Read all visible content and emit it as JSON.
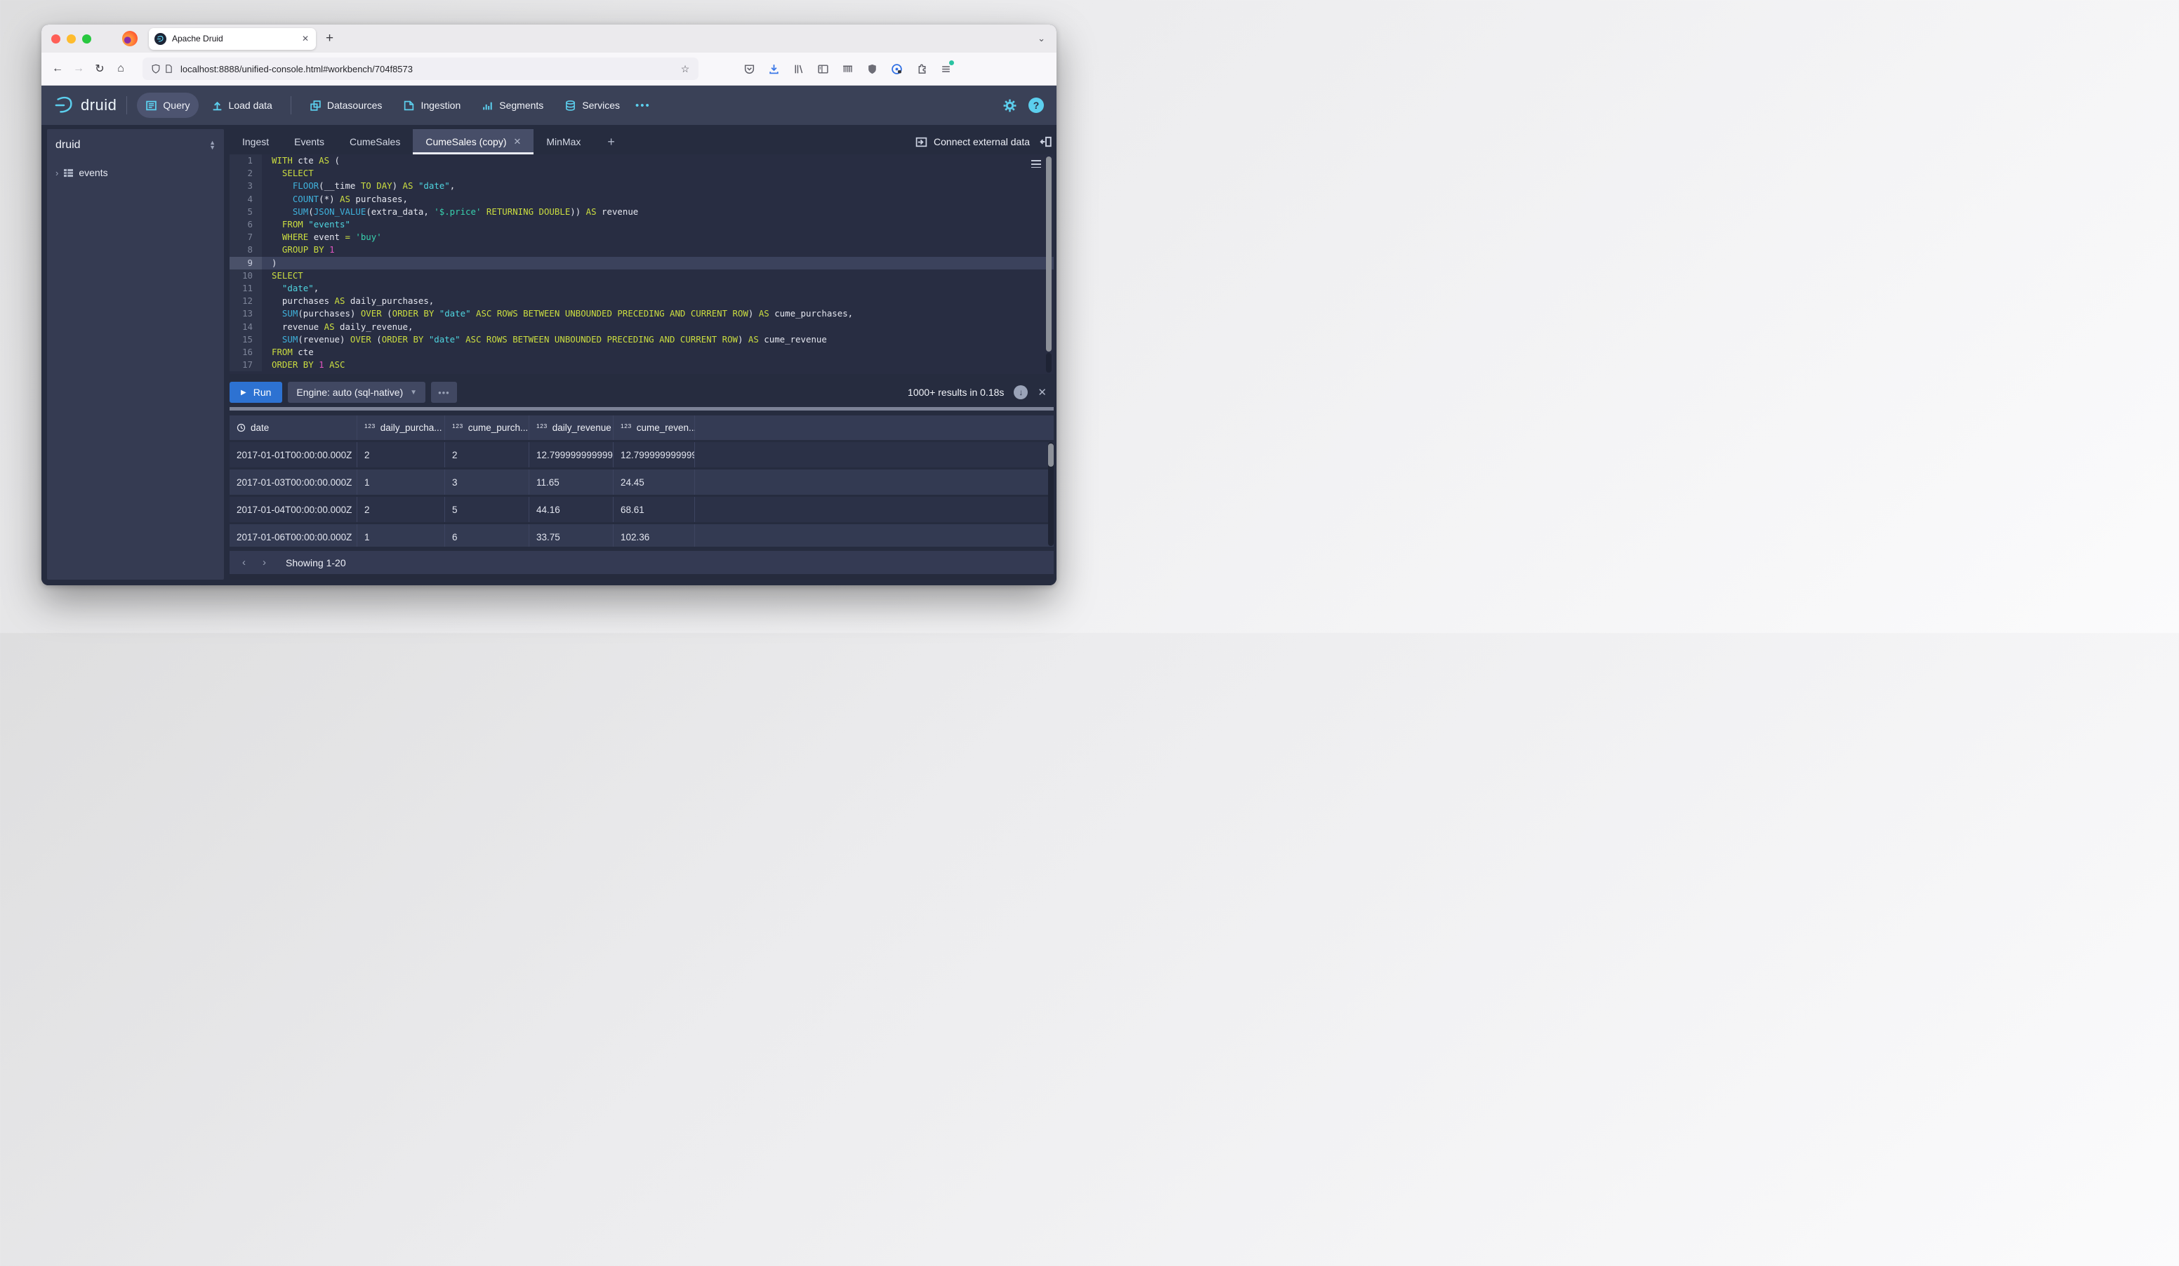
{
  "browser": {
    "tab_title": "Apache Druid",
    "url": "localhost:8888/unified-console.html#workbench/704f8573",
    "toolbar_icons": [
      "pocket",
      "downloads",
      "library",
      "sidebar",
      "containers",
      "ublock",
      "onepassword",
      "extensions",
      "menu"
    ]
  },
  "navbar": {
    "brand": "druid",
    "items": [
      {
        "label": "Query",
        "icon": "query",
        "active": true
      },
      {
        "label": "Load data",
        "icon": "load-data"
      },
      {
        "label": "Datasources",
        "icon": "datasources"
      },
      {
        "label": "Ingestion",
        "icon": "ingestion"
      },
      {
        "label": "Segments",
        "icon": "segments"
      },
      {
        "label": "Services",
        "icon": "services"
      }
    ],
    "more_label": "•••"
  },
  "sidebar": {
    "schema": "druid",
    "tables": [
      {
        "name": "events"
      }
    ]
  },
  "workbench": {
    "tabs": [
      {
        "label": "Ingest"
      },
      {
        "label": "Events"
      },
      {
        "label": "CumeSales"
      },
      {
        "label": "CumeSales (copy)",
        "active": true,
        "closable": true
      },
      {
        "label": "MinMax"
      }
    ],
    "new_tab_label": "+",
    "connect_external": "Connect external data"
  },
  "editor": {
    "lines": [
      {
        "n": 1,
        "tokens": [
          [
            "k",
            "WITH"
          ],
          [
            "p",
            " cte "
          ],
          [
            "k",
            "AS"
          ],
          [
            "p",
            " ("
          ]
        ]
      },
      {
        "n": 2,
        "tokens": [
          [
            "p",
            "  "
          ],
          [
            "k",
            "SELECT"
          ]
        ]
      },
      {
        "n": 3,
        "tokens": [
          [
            "p",
            "    "
          ],
          [
            "f",
            "FLOOR"
          ],
          [
            "p",
            "(__time "
          ],
          [
            "k",
            "TO"
          ],
          [
            "p",
            " "
          ],
          [
            "k",
            "DAY"
          ],
          [
            "p",
            ") "
          ],
          [
            "k",
            "AS"
          ],
          [
            "p",
            " "
          ],
          [
            "q",
            "\"date\""
          ],
          [
            "p",
            ","
          ]
        ]
      },
      {
        "n": 4,
        "tokens": [
          [
            "p",
            "    "
          ],
          [
            "f",
            "COUNT"
          ],
          [
            "p",
            "(*) "
          ],
          [
            "k",
            "AS"
          ],
          [
            "p",
            " purchases,"
          ]
        ]
      },
      {
        "n": 5,
        "tokens": [
          [
            "p",
            "    "
          ],
          [
            "f",
            "SUM"
          ],
          [
            "p",
            "("
          ],
          [
            "f",
            "JSON_VALUE"
          ],
          [
            "p",
            "(extra_data, "
          ],
          [
            "s",
            "'$.price'"
          ],
          [
            "p",
            " "
          ],
          [
            "k",
            "RETURNING"
          ],
          [
            "p",
            " "
          ],
          [
            "k",
            "DOUBLE"
          ],
          [
            "p",
            ")) "
          ],
          [
            "k",
            "AS"
          ],
          [
            "p",
            " revenue"
          ]
        ]
      },
      {
        "n": 6,
        "tokens": [
          [
            "p",
            "  "
          ],
          [
            "k",
            "FROM"
          ],
          [
            "p",
            " "
          ],
          [
            "q",
            "\"events\""
          ]
        ]
      },
      {
        "n": 7,
        "tokens": [
          [
            "p",
            "  "
          ],
          [
            "k",
            "WHERE"
          ],
          [
            "p",
            " event "
          ],
          [
            "k",
            "="
          ],
          [
            "p",
            " "
          ],
          [
            "s",
            "'buy'"
          ]
        ]
      },
      {
        "n": 8,
        "tokens": [
          [
            "p",
            "  "
          ],
          [
            "k",
            "GROUP BY"
          ],
          [
            "p",
            " "
          ],
          [
            "n",
            "1"
          ]
        ]
      },
      {
        "n": 9,
        "active": true,
        "tokens": [
          [
            "p",
            ")"
          ]
        ]
      },
      {
        "n": 10,
        "tokens": [
          [
            "k",
            "SELECT"
          ]
        ]
      },
      {
        "n": 11,
        "tokens": [
          [
            "p",
            "  "
          ],
          [
            "q",
            "\"date\""
          ],
          [
            "p",
            ","
          ]
        ]
      },
      {
        "n": 12,
        "tokens": [
          [
            "p",
            "  purchases "
          ],
          [
            "k",
            "AS"
          ],
          [
            "p",
            " daily_purchases,"
          ]
        ]
      },
      {
        "n": 13,
        "tokens": [
          [
            "p",
            "  "
          ],
          [
            "f",
            "SUM"
          ],
          [
            "p",
            "(purchases) "
          ],
          [
            "k",
            "OVER"
          ],
          [
            "p",
            " ("
          ],
          [
            "k",
            "ORDER BY"
          ],
          [
            "p",
            " "
          ],
          [
            "q",
            "\"date\""
          ],
          [
            "p",
            " "
          ],
          [
            "k",
            "ASC ROWS BETWEEN UNBOUNDED PRECEDING AND CURRENT ROW"
          ],
          [
            "p",
            ") "
          ],
          [
            "k",
            "AS"
          ],
          [
            "p",
            " cume_purchases,"
          ]
        ]
      },
      {
        "n": 14,
        "tokens": [
          [
            "p",
            "  revenue "
          ],
          [
            "k",
            "AS"
          ],
          [
            "p",
            " daily_revenue,"
          ]
        ]
      },
      {
        "n": 15,
        "tokens": [
          [
            "p",
            "  "
          ],
          [
            "f",
            "SUM"
          ],
          [
            "p",
            "(revenue) "
          ],
          [
            "k",
            "OVER"
          ],
          [
            "p",
            " ("
          ],
          [
            "k",
            "ORDER BY"
          ],
          [
            "p",
            " "
          ],
          [
            "q",
            "\"date\""
          ],
          [
            "p",
            " "
          ],
          [
            "k",
            "ASC ROWS BETWEEN UNBOUNDED PRECEDING AND CURRENT ROW"
          ],
          [
            "p",
            ") "
          ],
          [
            "k",
            "AS"
          ],
          [
            "p",
            " cume_revenue"
          ]
        ]
      },
      {
        "n": 16,
        "tokens": [
          [
            "k",
            "FROM"
          ],
          [
            "p",
            " cte"
          ]
        ]
      },
      {
        "n": 17,
        "tokens": [
          [
            "k",
            "ORDER BY"
          ],
          [
            "p",
            " "
          ],
          [
            "n",
            "1"
          ],
          [
            "p",
            " "
          ],
          [
            "k",
            "ASC"
          ]
        ]
      }
    ]
  },
  "run_bar": {
    "run_label": "Run",
    "engine_label": "Engine: auto (sql-native)",
    "more_label": "•••",
    "status": "1000+ results in 0.18s"
  },
  "results": {
    "columns": [
      {
        "icon": "clock",
        "label": "date",
        "width": 182
      },
      {
        "icon": "123",
        "label": "daily_purcha...",
        "width": 125
      },
      {
        "icon": "123",
        "label": "cume_purch...",
        "width": 120
      },
      {
        "icon": "123",
        "label": "daily_revenue",
        "width": 120
      },
      {
        "icon": "123",
        "label": "cume_reven...",
        "width": 116
      }
    ],
    "rows": [
      [
        "2017-01-01T00:00:00.000Z",
        "2",
        "2",
        "12.799999999999",
        "12.799999999999"
      ],
      [
        "2017-01-03T00:00:00.000Z",
        "1",
        "3",
        "11.65",
        "24.45"
      ],
      [
        "2017-01-04T00:00:00.000Z",
        "2",
        "5",
        "44.16",
        "68.61"
      ],
      [
        "2017-01-06T00:00:00.000Z",
        "1",
        "6",
        "33.75",
        "102.36"
      ]
    ],
    "pagination": "Showing 1-20"
  }
}
